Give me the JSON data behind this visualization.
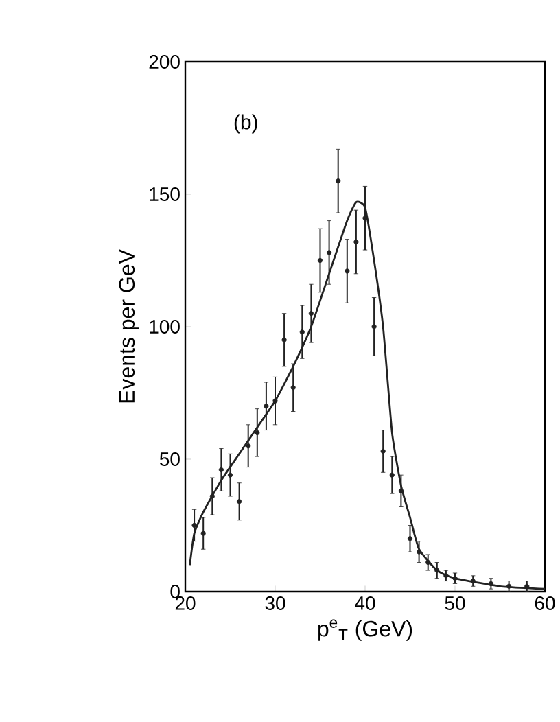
{
  "chart_data": {
    "type": "scatter",
    "xlabel": "p$^{e}$$_{T}$  (GeV)",
    "ylabel": "Events per GeV",
    "annotations": [
      "(b)"
    ],
    "xlim": [
      20,
      60
    ],
    "xticks": [
      20,
      30,
      40,
      50,
      60
    ],
    "ylim": [
      0,
      200
    ],
    "yticks": [
      0,
      50,
      100,
      150,
      200
    ],
    "series": [
      {
        "color": "#222222",
        "marker": "circle",
        "x": [
          21,
          22,
          23,
          24,
          25,
          26,
          27,
          28,
          29,
          30,
          31,
          32,
          33,
          34,
          35,
          36,
          37,
          38,
          39,
          40,
          41,
          42,
          43,
          44,
          45,
          46,
          47,
          48,
          49,
          50,
          52,
          54,
          56,
          58
        ],
        "values": [
          25,
          22,
          36,
          46,
          44,
          34,
          55,
          60,
          70,
          72,
          95,
          77,
          98,
          105,
          125,
          128,
          155,
          121,
          132,
          141,
          100,
          53,
          44,
          38,
          20,
          15,
          11,
          8,
          6,
          5,
          4,
          3,
          2,
          2
        ],
        "errors": [
          6,
          6,
          7,
          8,
          8,
          7,
          8,
          9,
          9,
          9,
          10,
          9,
          10,
          11,
          12,
          12,
          12,
          12,
          12,
          12,
          11,
          8,
          7,
          6,
          5,
          4,
          3,
          3,
          2,
          2,
          2,
          2,
          2,
          2
        ]
      },
      {
        "type": "line",
        "color": "#222222",
        "x": [
          20.5,
          21,
          22,
          24,
          26,
          28,
          30,
          32,
          34,
          36,
          38,
          39,
          40,
          41,
          42,
          43,
          44,
          45,
          46,
          48,
          50,
          55,
          60
        ],
        "values": [
          10,
          22,
          30,
          42,
          52,
          62,
          72,
          85,
          100,
          120,
          140,
          147,
          145,
          125,
          100,
          60,
          40,
          28,
          16,
          8,
          5,
          2,
          1
        ]
      }
    ]
  }
}
